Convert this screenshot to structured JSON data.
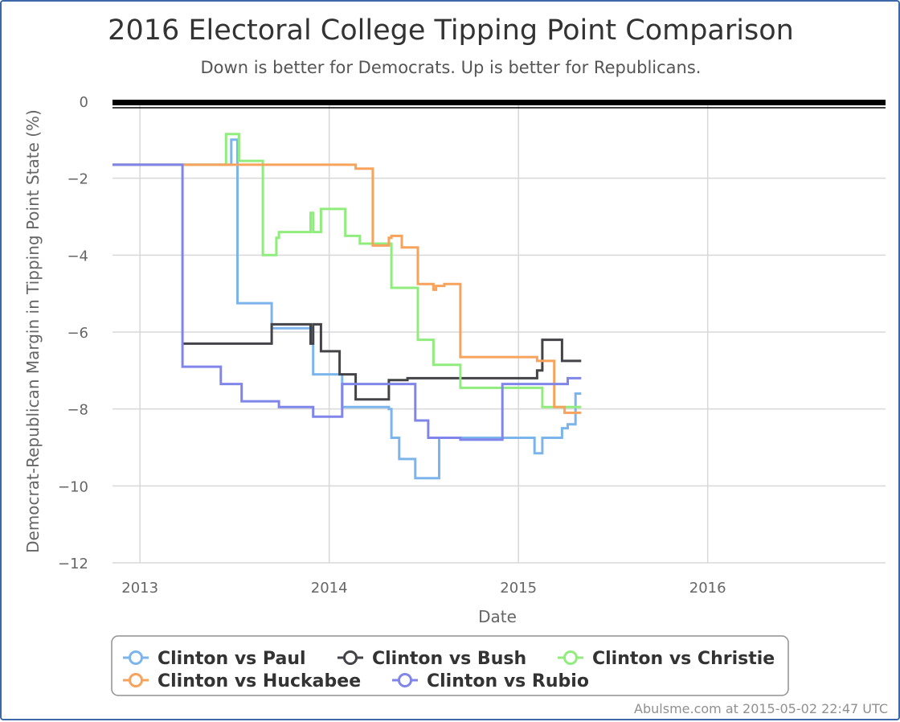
{
  "chart_data": {
    "type": "line",
    "title": "2016 Electoral College Tipping Point Comparison",
    "subtitle": "Down is better for Democrats. Up is better for Republicans.",
    "xlabel": "Date",
    "ylabel": "Democrat-Republican Margin in Tipping Point State (%)",
    "xlim": [
      "2012-11-09",
      "2016-12-09"
    ],
    "ylim": [
      -12,
      0
    ],
    "x_ticks": [
      "2013",
      "2014",
      "2015",
      "2016"
    ],
    "y_ticks": [
      "0",
      "−2",
      "−4",
      "−6",
      "−8",
      "−10",
      "−12"
    ],
    "grid": true,
    "legend_position": "bottom",
    "bands": [
      {
        "from": -10,
        "to": -5,
        "color": "#daedf7"
      },
      {
        "from": -12,
        "to": -10,
        "color": "#b6ddee"
      }
    ],
    "series": [
      {
        "name": "Clinton vs Paul",
        "color": "#7cb5ec",
        "step": true,
        "points": [
          [
            "2012-11-09",
            -1.65
          ],
          [
            "2013-03-24",
            -1.65
          ],
          [
            "2013-06-26",
            -1.0
          ],
          [
            "2013-07-08",
            -5.25
          ],
          [
            "2013-09-12",
            -5.9
          ],
          [
            "2013-12-01",
            -7.1
          ],
          [
            "2014-01-26",
            -7.95
          ],
          [
            "2014-04-26",
            -8.0
          ],
          [
            "2014-05-01",
            -8.75
          ],
          [
            "2014-05-16",
            -9.3
          ],
          [
            "2014-06-16",
            -9.8
          ],
          [
            "2014-08-01",
            -8.75
          ],
          [
            "2015-02-01",
            -9.15
          ],
          [
            "2015-02-16",
            -8.75
          ],
          [
            "2015-03-26",
            -8.5
          ],
          [
            "2015-04-06",
            -8.4
          ],
          [
            "2015-04-21",
            -7.6
          ],
          [
            "2015-05-02",
            -7.6
          ]
        ]
      },
      {
        "name": "Clinton vs Bush",
        "color": "#434348",
        "step": true,
        "points": [
          [
            "2013-03-24",
            -6.3
          ],
          [
            "2013-09-12",
            -5.8
          ],
          [
            "2013-11-26",
            -6.3
          ],
          [
            "2013-12-01",
            -5.8
          ],
          [
            "2013-12-16",
            -6.5
          ],
          [
            "2014-01-21",
            -7.1
          ],
          [
            "2014-02-21",
            -7.75
          ],
          [
            "2014-04-26",
            -7.25
          ],
          [
            "2014-06-01",
            -7.2
          ],
          [
            "2015-02-06",
            -7.0
          ],
          [
            "2015-02-16",
            -6.2
          ],
          [
            "2015-03-26",
            -6.75
          ],
          [
            "2015-05-02",
            -6.75
          ]
        ]
      },
      {
        "name": "Clinton vs Christie",
        "color": "#90ed7d",
        "step": true,
        "points": [
          [
            "2012-11-09",
            -1.65
          ],
          [
            "2013-06-16",
            -0.85
          ],
          [
            "2013-07-11",
            -1.55
          ],
          [
            "2013-08-26",
            -4.0
          ],
          [
            "2013-09-21",
            -3.55
          ],
          [
            "2013-09-26",
            -3.4
          ],
          [
            "2013-11-26",
            -2.9
          ],
          [
            "2013-12-01",
            -3.4
          ],
          [
            "2013-12-16",
            -2.8
          ],
          [
            "2014-02-01",
            -3.5
          ],
          [
            "2014-03-01",
            -3.7
          ],
          [
            "2014-05-01",
            -4.85
          ],
          [
            "2014-06-21",
            -6.2
          ],
          [
            "2014-07-21",
            -6.85
          ],
          [
            "2014-09-11",
            -7.45
          ],
          [
            "2015-02-16",
            -7.95
          ],
          [
            "2015-05-02",
            -7.95
          ]
        ]
      },
      {
        "name": "Clinton vs Huckabee",
        "color": "#f7a35c",
        "step": true,
        "points": [
          [
            "2012-11-09",
            -1.65
          ],
          [
            "2014-02-21",
            -1.75
          ],
          [
            "2014-03-26",
            -3.75
          ],
          [
            "2014-04-26",
            -3.55
          ],
          [
            "2014-05-01",
            -3.5
          ],
          [
            "2014-05-21",
            -3.8
          ],
          [
            "2014-06-21",
            -4.75
          ],
          [
            "2014-07-21",
            -4.9
          ],
          [
            "2014-07-26",
            -4.8
          ],
          [
            "2014-08-11",
            -4.75
          ],
          [
            "2014-09-11",
            -6.65
          ],
          [
            "2015-02-06",
            -6.75
          ],
          [
            "2015-03-11",
            -7.95
          ],
          [
            "2015-03-31",
            -8.1
          ],
          [
            "2015-05-02",
            -8.1
          ]
        ]
      },
      {
        "name": "Clinton vs Rubio",
        "color": "#8085e9",
        "step": true,
        "points": [
          [
            "2012-11-09",
            -1.65
          ],
          [
            "2013-03-24",
            -6.9
          ],
          [
            "2013-06-06",
            -7.35
          ],
          [
            "2013-07-16",
            -7.8
          ],
          [
            "2013-09-26",
            -7.95
          ],
          [
            "2013-12-01",
            -8.2
          ],
          [
            "2014-01-26",
            -7.35
          ],
          [
            "2014-06-16",
            -8.3
          ],
          [
            "2014-07-11",
            -8.75
          ],
          [
            "2014-09-11",
            -8.8
          ],
          [
            "2014-12-01",
            -7.35
          ],
          [
            "2015-04-06",
            -7.2
          ],
          [
            "2015-05-02",
            -7.2
          ]
        ]
      }
    ],
    "baseline_value": 0,
    "credit": "Abulsme.com at 2015-05-02 22:47 UTC"
  }
}
